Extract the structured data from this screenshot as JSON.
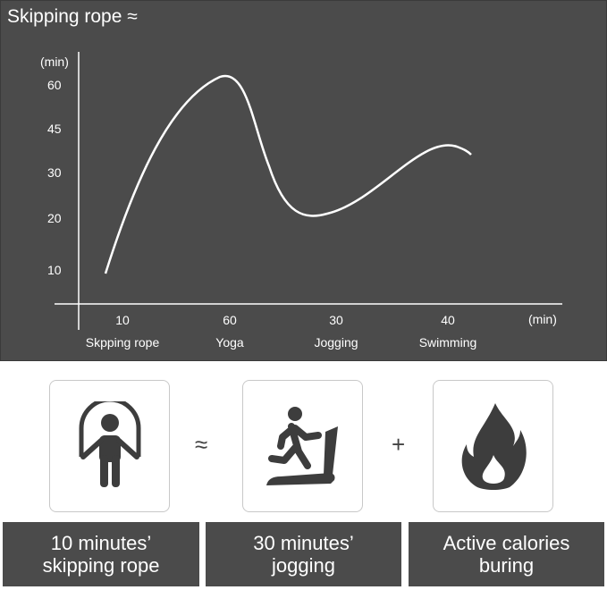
{
  "chart_data": {
    "type": "line",
    "title": "Skipping rope ≈",
    "ylabel": "(min)",
    "xlabel": "(min)",
    "yticks": [
      "60",
      "45",
      "30",
      "20",
      "10"
    ],
    "categories": [
      "Skpping rope",
      "Yoga",
      "Jogging",
      "Swimming"
    ],
    "values": [
      10,
      60,
      30,
      40
    ],
    "grid": false,
    "line_color": "#ffffff",
    "background": "#4b4b4b"
  },
  "equation": {
    "items": [
      {
        "icon": "jump-rope-icon",
        "label": "10 minutes’\nskipping rope"
      },
      {
        "icon": "treadmill-runner-icon",
        "label": "30 minutes’\njogging"
      },
      {
        "icon": "flame-icon",
        "label": "Active calories\nburing"
      }
    ],
    "approx_symbol": "≈",
    "plus_symbol": "+"
  }
}
